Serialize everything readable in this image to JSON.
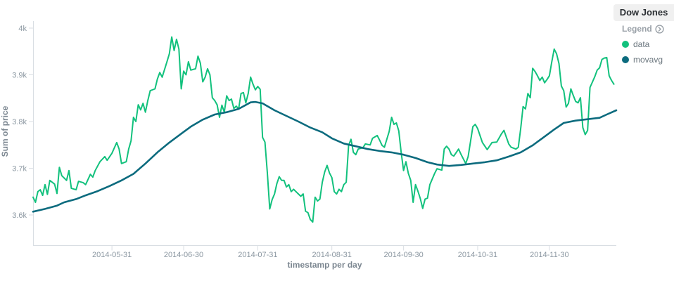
{
  "header": {
    "title": "Dow Jones"
  },
  "legend": {
    "toggle_label": "Legend",
    "items": [
      {
        "label": "data",
        "color": "#12c17d"
      },
      {
        "label": "movavg",
        "color": "#0c6b7e"
      }
    ]
  },
  "chart_data": {
    "type": "line",
    "title": "Dow Jones",
    "xlabel": "timestamp per day",
    "ylabel": "Sum of price",
    "x_unit": "days since 2014-04-28, daily interval",
    "ylim": [
      3600,
      4000
    ],
    "grid": false,
    "legend_position": "right",
    "yticks": [
      {
        "label": "4k",
        "value": 4000
      },
      {
        "label": "3.9k",
        "value": 3900
      },
      {
        "label": "3.8k",
        "value": 3800
      },
      {
        "label": "3.7k",
        "value": 3700
      },
      {
        "label": "3.6k",
        "value": 3600
      }
    ],
    "xticks": [
      {
        "label": "2014-05-31",
        "day": 33
      },
      {
        "label": "2014-06-30",
        "day": 63
      },
      {
        "label": "2014-07-31",
        "day": 94
      },
      {
        "label": "2014-08-31",
        "day": 125
      },
      {
        "label": "2014-09-30",
        "day": 155
      },
      {
        "label": "2014-10-31",
        "day": 186
      },
      {
        "label": "2014-11-30",
        "day": 216
      }
    ],
    "total_days": 244,
    "series": [
      {
        "name": "data",
        "color": "#12c17d",
        "width": 2,
        "points": [
          [
            0,
            3638
          ],
          [
            1,
            3627
          ],
          [
            2,
            3650
          ],
          [
            3,
            3654
          ],
          [
            4,
            3642
          ],
          [
            5,
            3665
          ],
          [
            6,
            3644
          ],
          [
            7,
            3674
          ],
          [
            9,
            3666
          ],
          [
            10,
            3646
          ],
          [
            11,
            3702
          ],
          [
            12,
            3684
          ],
          [
            14,
            3674
          ],
          [
            15,
            3695
          ],
          [
            16,
            3657
          ],
          [
            18,
            3654
          ],
          [
            19,
            3672
          ],
          [
            21,
            3669
          ],
          [
            22,
            3665
          ],
          [
            24,
            3687
          ],
          [
            25,
            3681
          ],
          [
            26,
            3695
          ],
          [
            28,
            3714
          ],
          [
            30,
            3725
          ],
          [
            31,
            3717
          ],
          [
            33,
            3732
          ],
          [
            35,
            3755
          ],
          [
            36,
            3741
          ],
          [
            37,
            3710
          ],
          [
            39,
            3714
          ],
          [
            40,
            3741
          ],
          [
            41,
            3759
          ],
          [
            42,
            3809
          ],
          [
            43,
            3800
          ],
          [
            44,
            3836
          ],
          [
            45,
            3825
          ],
          [
            46,
            3839
          ],
          [
            47,
            3820
          ],
          [
            48,
            3845
          ],
          [
            49,
            3866
          ],
          [
            51,
            3870
          ],
          [
            52,
            3891
          ],
          [
            53,
            3905
          ],
          [
            54,
            3895
          ],
          [
            56,
            3928
          ],
          [
            57,
            3945
          ],
          [
            58,
            3981
          ],
          [
            59,
            3952
          ],
          [
            60,
            3976
          ],
          [
            61,
            3955
          ],
          [
            62,
            3870
          ],
          [
            63,
            3908
          ],
          [
            64,
            3900
          ],
          [
            65,
            3928
          ],
          [
            66,
            3910
          ],
          [
            68,
            3913
          ],
          [
            69,
            3940
          ],
          [
            70,
            3925
          ],
          [
            71,
            3885
          ],
          [
            72,
            3895
          ],
          [
            73,
            3913
          ],
          [
            74,
            3900
          ],
          [
            75,
            3851
          ],
          [
            76,
            3845
          ],
          [
            77,
            3836
          ],
          [
            78,
            3809
          ],
          [
            79,
            3835
          ],
          [
            80,
            3820
          ],
          [
            81,
            3855
          ],
          [
            82,
            3845
          ],
          [
            83,
            3848
          ],
          [
            84,
            3828
          ],
          [
            85,
            3833
          ],
          [
            86,
            3827
          ],
          [
            87,
            3860
          ],
          [
            88,
            3862
          ],
          [
            89,
            3840
          ],
          [
            90,
            3860
          ],
          [
            91,
            3895
          ],
          [
            92,
            3880
          ],
          [
            93,
            3868
          ],
          [
            94,
            3875
          ],
          [
            95,
            3869
          ],
          [
            96,
            3766
          ],
          [
            97,
            3756
          ],
          [
            98,
            3690
          ],
          [
            99,
            3613
          ],
          [
            100,
            3633
          ],
          [
            101,
            3645
          ],
          [
            102,
            3667
          ],
          [
            103,
            3682
          ],
          [
            104,
            3674
          ],
          [
            105,
            3674
          ],
          [
            106,
            3660
          ],
          [
            107,
            3665
          ],
          [
            108,
            3650
          ],
          [
            109,
            3655
          ],
          [
            110,
            3650
          ],
          [
            111,
            3645
          ],
          [
            112,
            3640
          ],
          [
            113,
            3645
          ],
          [
            114,
            3608
          ],
          [
            115,
            3605
          ],
          [
            116,
            3590
          ],
          [
            117,
            3585
          ],
          [
            118,
            3638
          ],
          [
            119,
            3630
          ],
          [
            120,
            3634
          ],
          [
            121,
            3670
          ],
          [
            122,
            3692
          ],
          [
            123,
            3706
          ],
          [
            124,
            3690
          ],
          [
            125,
            3680
          ],
          [
            126,
            3650
          ],
          [
            127,
            3645
          ],
          [
            128,
            3655
          ],
          [
            129,
            3650
          ],
          [
            130,
            3665
          ],
          [
            131,
            3670
          ],
          [
            132,
            3749
          ],
          [
            133,
            3762
          ],
          [
            134,
            3734
          ],
          [
            135,
            3729
          ],
          [
            136,
            3741
          ],
          [
            138,
            3744
          ],
          [
            139,
            3752
          ],
          [
            141,
            3750
          ],
          [
            142,
            3764
          ],
          [
            144,
            3770
          ],
          [
            145,
            3760
          ],
          [
            146,
            3749
          ],
          [
            147,
            3745
          ],
          [
            149,
            3779
          ],
          [
            150,
            3809
          ],
          [
            151,
            3794
          ],
          [
            152,
            3797
          ],
          [
            153,
            3780
          ],
          [
            154,
            3734
          ],
          [
            155,
            3695
          ],
          [
            156,
            3714
          ],
          [
            157,
            3689
          ],
          [
            158,
            3674
          ],
          [
            159,
            3627
          ],
          [
            160,
            3665
          ],
          [
            161,
            3651
          ],
          [
            162,
            3635
          ],
          [
            163,
            3614
          ],
          [
            164,
            3634
          ],
          [
            165,
            3636
          ],
          [
            166,
            3665
          ],
          [
            168,
            3689
          ],
          [
            169,
            3699
          ],
          [
            171,
            3696
          ],
          [
            172,
            3741
          ],
          [
            173,
            3747
          ],
          [
            174,
            3741
          ],
          [
            175,
            3729
          ],
          [
            176,
            3726
          ],
          [
            178,
            3741
          ],
          [
            179,
            3730
          ],
          [
            181,
            3710
          ],
          [
            182,
            3725
          ],
          [
            184,
            3789
          ],
          [
            185,
            3794
          ],
          [
            186,
            3785
          ],
          [
            188,
            3755
          ],
          [
            190,
            3740
          ],
          [
            192,
            3755
          ],
          [
            194,
            3756
          ],
          [
            196,
            3774
          ],
          [
            197,
            3781
          ],
          [
            199,
            3752
          ],
          [
            200,
            3745
          ],
          [
            202,
            3741
          ],
          [
            203,
            3745
          ],
          [
            204,
            3785
          ],
          [
            205,
            3832
          ],
          [
            206,
            3827
          ],
          [
            207,
            3860
          ],
          [
            208,
            3851
          ],
          [
            209,
            3914
          ],
          [
            210,
            3907
          ],
          [
            211,
            3898
          ],
          [
            212,
            3888
          ],
          [
            213,
            3895
          ],
          [
            214,
            3883
          ],
          [
            215,
            3890
          ],
          [
            216,
            3898
          ],
          [
            217,
            3928
          ],
          [
            218,
            3955
          ],
          [
            219,
            3945
          ],
          [
            220,
            3924
          ],
          [
            221,
            3876
          ],
          [
            222,
            3866
          ],
          [
            223,
            3831
          ],
          [
            224,
            3839
          ],
          [
            225,
            3870
          ],
          [
            226,
            3856
          ],
          [
            227,
            3843
          ],
          [
            228,
            3840
          ],
          [
            229,
            3851
          ],
          [
            230,
            3787
          ],
          [
            231,
            3772
          ],
          [
            232,
            3781
          ],
          [
            233,
            3873
          ],
          [
            235,
            3896
          ],
          [
            236,
            3910
          ],
          [
            237,
            3915
          ],
          [
            238,
            3933
          ],
          [
            239,
            3936
          ],
          [
            240,
            3937
          ],
          [
            241,
            3898
          ],
          [
            242,
            3888
          ],
          [
            243,
            3880
          ]
        ]
      },
      {
        "name": "movavg",
        "color": "#0c6b7e",
        "width": 2.6,
        "points": [
          [
            0,
            3607
          ],
          [
            5,
            3613
          ],
          [
            10,
            3620
          ],
          [
            13,
            3627
          ],
          [
            18,
            3634
          ],
          [
            22,
            3642
          ],
          [
            27,
            3651
          ],
          [
            32,
            3662
          ],
          [
            37,
            3674
          ],
          [
            42,
            3688
          ],
          [
            47,
            3710
          ],
          [
            52,
            3734
          ],
          [
            57,
            3755
          ],
          [
            62,
            3774
          ],
          [
            66,
            3789
          ],
          [
            71,
            3804
          ],
          [
            76,
            3815
          ],
          [
            81,
            3820
          ],
          [
            86,
            3827
          ],
          [
            91,
            3841
          ],
          [
            93,
            3842
          ],
          [
            96,
            3839
          ],
          [
            101,
            3824
          ],
          [
            106,
            3812
          ],
          [
            111,
            3800
          ],
          [
            116,
            3787
          ],
          [
            121,
            3777
          ],
          [
            125,
            3764
          ],
          [
            130,
            3753
          ],
          [
            135,
            3747
          ],
          [
            140,
            3741
          ],
          [
            145,
            3737
          ],
          [
            150,
            3734
          ],
          [
            155,
            3729
          ],
          [
            160,
            3722
          ],
          [
            165,
            3713
          ],
          [
            169,
            3708
          ],
          [
            174,
            3705
          ],
          [
            179,
            3707
          ],
          [
            184,
            3710
          ],
          [
            189,
            3713
          ],
          [
            194,
            3717
          ],
          [
            199,
            3725
          ],
          [
            204,
            3734
          ],
          [
            209,
            3749
          ],
          [
            213,
            3764
          ],
          [
            218,
            3783
          ],
          [
            222,
            3797
          ],
          [
            227,
            3802
          ],
          [
            232,
            3805
          ],
          [
            237,
            3808
          ],
          [
            240,
            3815
          ],
          [
            244,
            3824
          ]
        ]
      }
    ]
  }
}
